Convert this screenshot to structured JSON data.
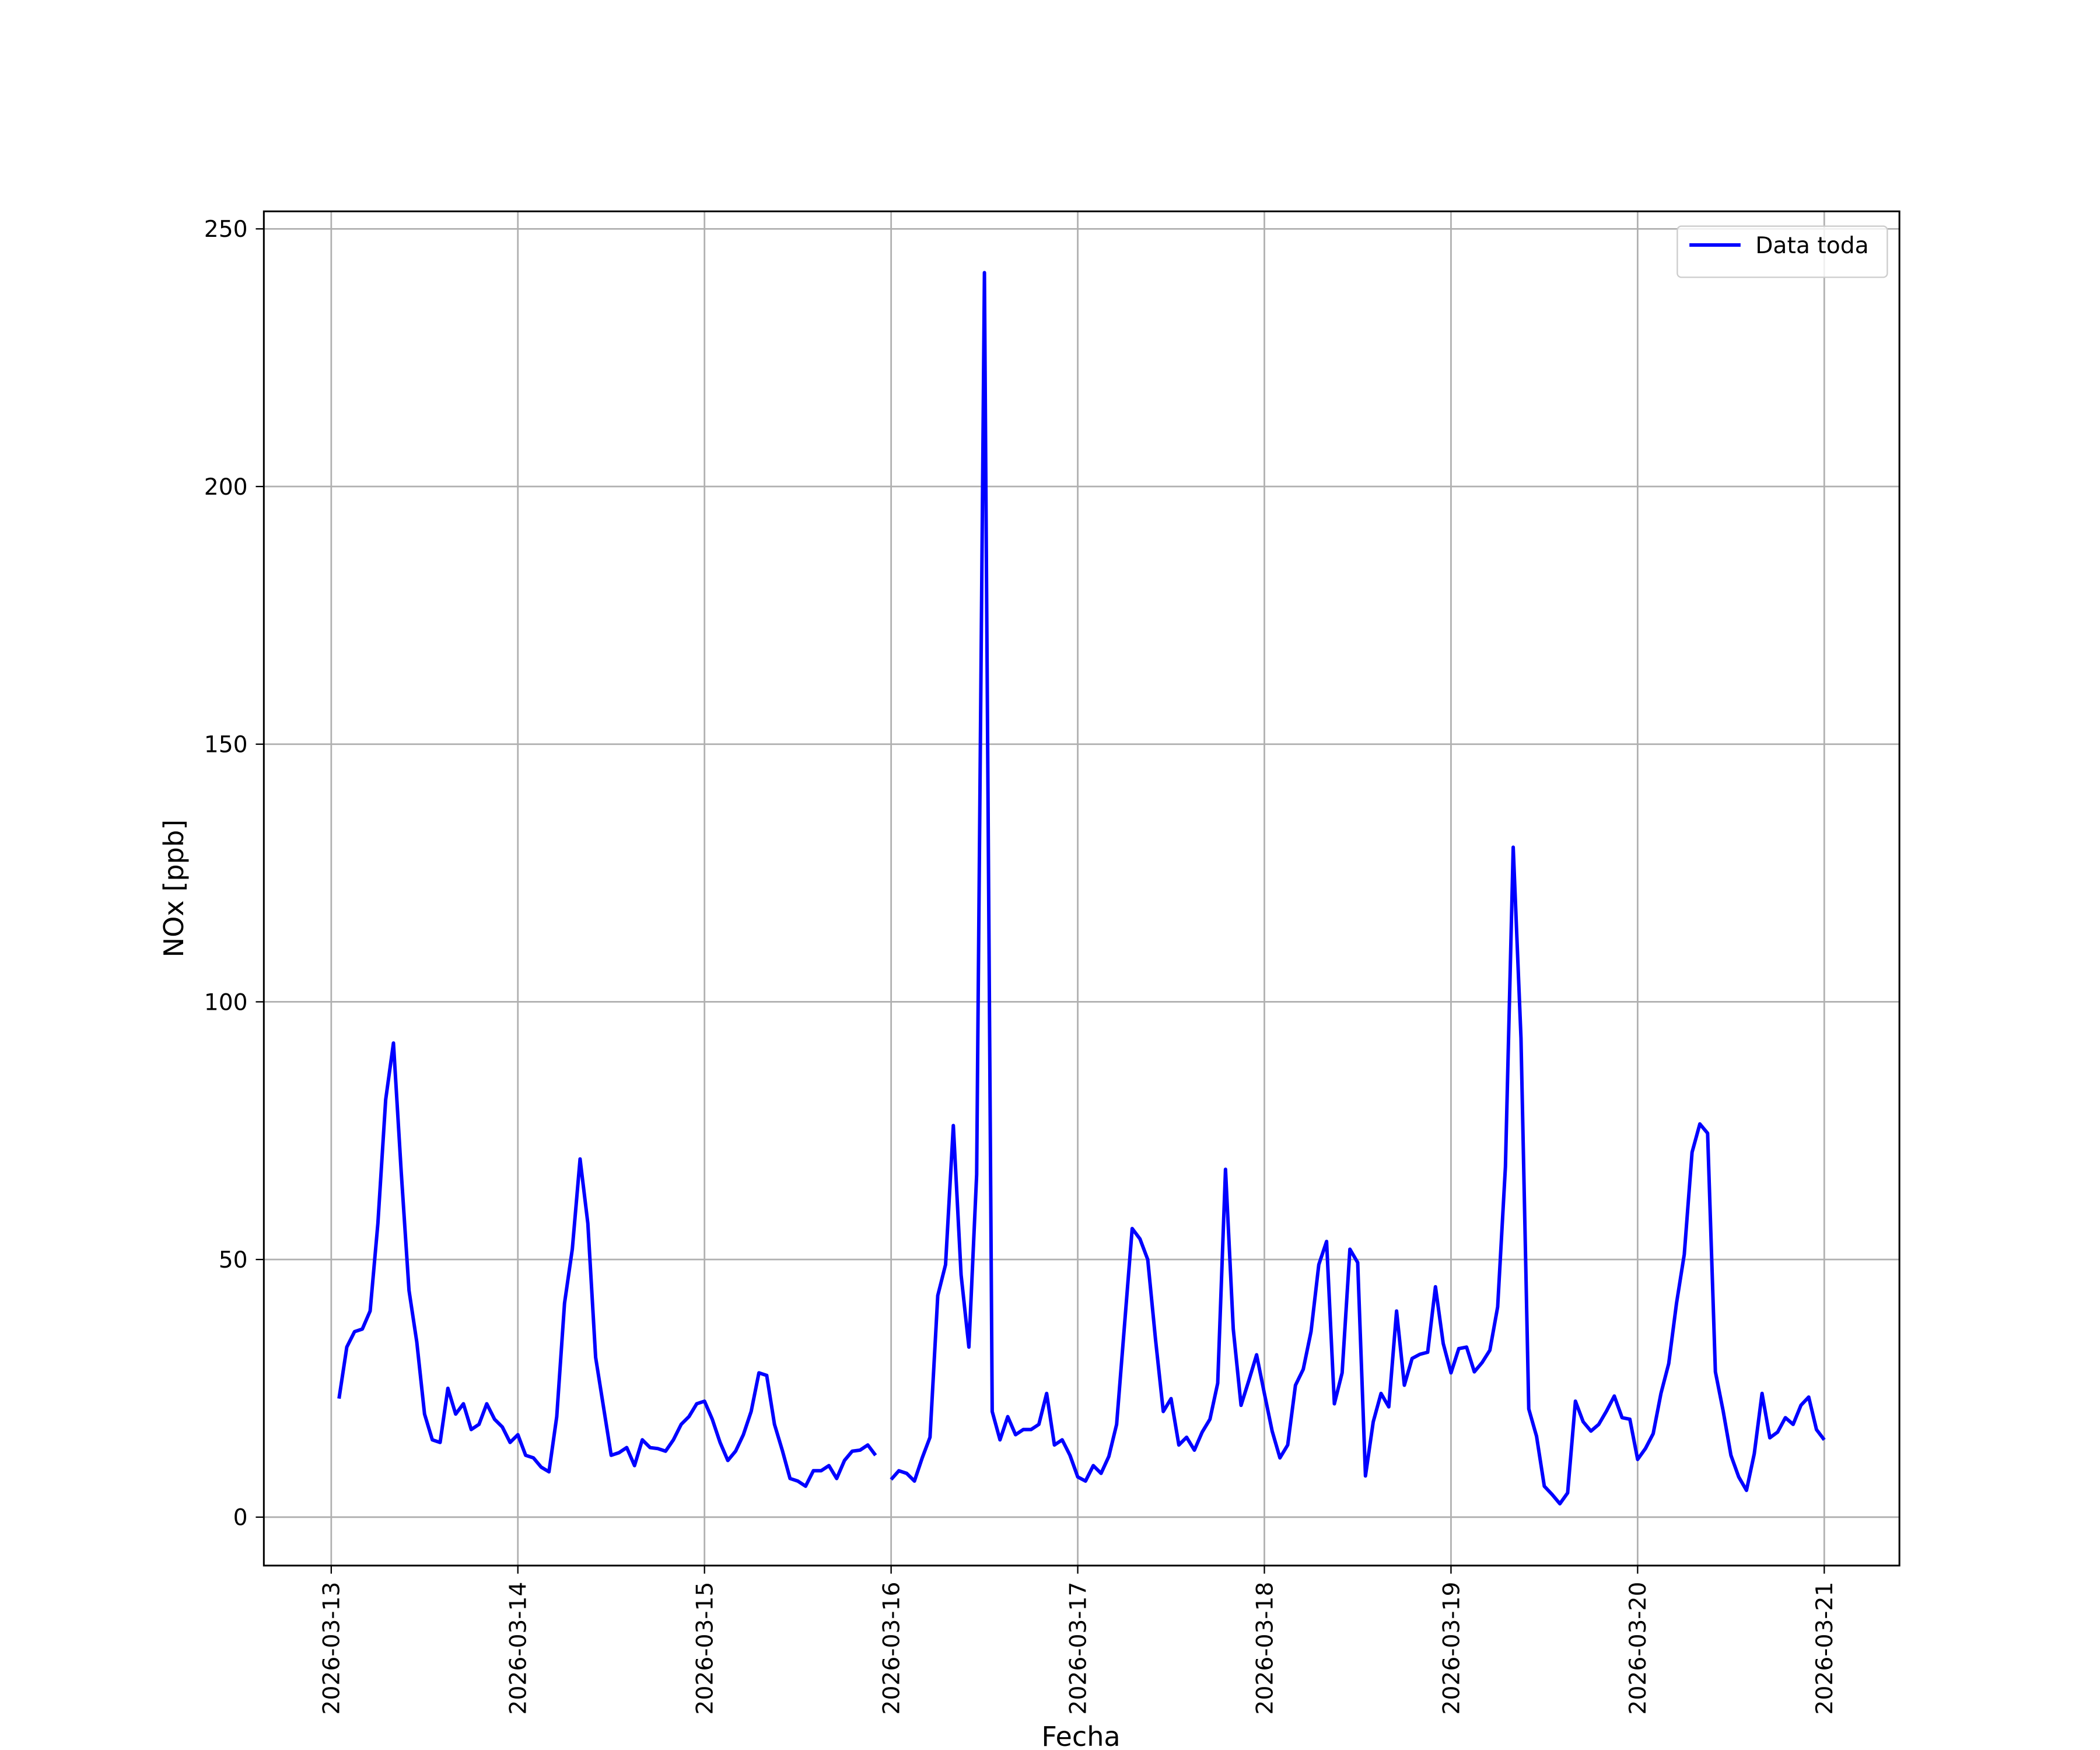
{
  "chart_data": {
    "type": "line",
    "x_label": "Fecha",
    "y_label": "NOx [ppb]",
    "x": [
      "2026-03-13 01:00",
      "2026-03-13 02:00",
      "2026-03-13 03:00",
      "2026-03-13 04:00",
      "2026-03-13 05:00",
      "2026-03-13 06:00",
      "2026-03-13 07:00",
      "2026-03-13 08:00",
      "2026-03-13 09:00",
      "2026-03-13 10:00",
      "2026-03-13 11:00",
      "2026-03-13 12:00",
      "2026-03-13 13:00",
      "2026-03-13 14:00",
      "2026-03-13 15:00",
      "2026-03-13 16:00",
      "2026-03-13 17:00",
      "2026-03-13 18:00",
      "2026-03-13 19:00",
      "2026-03-13 20:00",
      "2026-03-13 21:00",
      "2026-03-13 22:00",
      "2026-03-13 23:00",
      "2026-03-14 00:00",
      "2026-03-14 01:00",
      "2026-03-14 02:00",
      "2026-03-14 03:00",
      "2026-03-14 04:00",
      "2026-03-14 05:00",
      "2026-03-14 06:00",
      "2026-03-14 07:00",
      "2026-03-14 08:00",
      "2026-03-14 09:00",
      "2026-03-14 10:00",
      "2026-03-14 11:00",
      "2026-03-14 12:00",
      "2026-03-14 13:00",
      "2026-03-14 14:00",
      "2026-03-14 15:00",
      "2026-03-14 16:00",
      "2026-03-14 17:00",
      "2026-03-14 18:00",
      "2026-03-14 19:00",
      "2026-03-14 20:00",
      "2026-03-14 21:00",
      "2026-03-14 22:00",
      "2026-03-14 23:00",
      "2026-03-15 00:00",
      "2026-03-15 01:00",
      "2026-03-15 02:00",
      "2026-03-15 03:00",
      "2026-03-15 04:00",
      "2026-03-15 05:00",
      "2026-03-15 06:00",
      "2026-03-15 07:00",
      "2026-03-15 08:00",
      "2026-03-15 09:00",
      "2026-03-15 10:00",
      "2026-03-15 11:00",
      "2026-03-15 12:00",
      "2026-03-15 13:00",
      "2026-03-15 14:00",
      "2026-03-15 15:00",
      "2026-03-15 16:00",
      "2026-03-15 17:00",
      "2026-03-15 18:00",
      "2026-03-15 19:00",
      "2026-03-15 20:00",
      "2026-03-15 21:00",
      "2026-03-15 22:00",
      "2026-03-15 23:00",
      "2026-03-16 00:00",
      "2026-03-16 01:00",
      "2026-03-16 02:00",
      "2026-03-16 03:00",
      "2026-03-16 04:00",
      "2026-03-16 05:00",
      "2026-03-16 06:00",
      "2026-03-16 07:00",
      "2026-03-16 08:00",
      "2026-03-16 09:00",
      "2026-03-16 10:00",
      "2026-03-16 11:00",
      "2026-03-16 12:00",
      "2026-03-16 13:00",
      "2026-03-16 14:00",
      "2026-03-16 15:00",
      "2026-03-16 16:00",
      "2026-03-16 17:00",
      "2026-03-16 18:00",
      "2026-03-16 19:00",
      "2026-03-16 20:00",
      "2026-03-16 21:00",
      "2026-03-16 22:00",
      "2026-03-16 23:00",
      "2026-03-17 00:00",
      "2026-03-17 01:00",
      "2026-03-17 02:00",
      "2026-03-17 03:00",
      "2026-03-17 04:00",
      "2026-03-17 05:00",
      "2026-03-17 06:00",
      "2026-03-17 07:00",
      "2026-03-17 08:00",
      "2026-03-17 09:00",
      "2026-03-17 10:00",
      "2026-03-17 11:00",
      "2026-03-17 12:00",
      "2026-03-17 13:00",
      "2026-03-17 14:00",
      "2026-03-17 15:00",
      "2026-03-17 16:00",
      "2026-03-17 17:00",
      "2026-03-17 18:00",
      "2026-03-17 19:00",
      "2026-03-17 20:00",
      "2026-03-17 21:00",
      "2026-03-17 22:00",
      "2026-03-17 23:00",
      "2026-03-18 00:00",
      "2026-03-18 01:00",
      "2026-03-18 02:00",
      "2026-03-18 03:00",
      "2026-03-18 04:00",
      "2026-03-18 05:00",
      "2026-03-18 06:00",
      "2026-03-18 07:00",
      "2026-03-18 08:00",
      "2026-03-18 09:00",
      "2026-03-18 10:00",
      "2026-03-18 11:00",
      "2026-03-18 12:00",
      "2026-03-18 13:00",
      "2026-03-18 14:00",
      "2026-03-18 15:00",
      "2026-03-18 16:00",
      "2026-03-18 17:00",
      "2026-03-18 18:00",
      "2026-03-18 19:00",
      "2026-03-18 20:00",
      "2026-03-18 21:00",
      "2026-03-18 22:00",
      "2026-03-18 23:00",
      "2026-03-19 00:00",
      "2026-03-19 01:00",
      "2026-03-19 02:00",
      "2026-03-19 03:00",
      "2026-03-19 04:00",
      "2026-03-19 05:00",
      "2026-03-19 06:00",
      "2026-03-19 07:00",
      "2026-03-19 08:00",
      "2026-03-19 09:00",
      "2026-03-19 10:00",
      "2026-03-19 11:00",
      "2026-03-19 12:00",
      "2026-03-19 13:00",
      "2026-03-19 14:00",
      "2026-03-19 15:00",
      "2026-03-19 16:00",
      "2026-03-19 17:00",
      "2026-03-19 18:00",
      "2026-03-19 19:00",
      "2026-03-19 20:00",
      "2026-03-19 21:00",
      "2026-03-19 22:00",
      "2026-03-19 23:00",
      "2026-03-20 00:00",
      "2026-03-20 01:00",
      "2026-03-20 02:00",
      "2026-03-20 03:00",
      "2026-03-20 04:00",
      "2026-03-20 05:00",
      "2026-03-20 06:00",
      "2026-03-20 07:00",
      "2026-03-20 08:00",
      "2026-03-20 09:00",
      "2026-03-20 10:00",
      "2026-03-20 11:00",
      "2026-03-20 12:00",
      "2026-03-20 13:00",
      "2026-03-20 14:00",
      "2026-03-20 15:00",
      "2026-03-20 16:00",
      "2026-03-20 17:00",
      "2026-03-20 18:00",
      "2026-03-20 19:00",
      "2026-03-20 20:00",
      "2026-03-20 21:00",
      "2026-03-20 22:00",
      "2026-03-20 23:00",
      "2026-03-21 00:00"
    ],
    "series": [
      {
        "name": "Data toda",
        "color": "#0000ff",
        "values": [
          23,
          33,
          36,
          36.5,
          40,
          57,
          81,
          92,
          67,
          44,
          34,
          20,
          15,
          14.5,
          25,
          20,
          22,
          17,
          18,
          22,
          19,
          17.5,
          14.5,
          16,
          12,
          11.5,
          9.7,
          8.8,
          19.5,
          41.5,
          52,
          69.5,
          57,
          31,
          21.5,
          12,
          12.5,
          13.5,
          10,
          15,
          13.5,
          13.3,
          12.8,
          15,
          18,
          19.5,
          22,
          22.5,
          19,
          14.5,
          11,
          12.8,
          16,
          20.5,
          28,
          27.5,
          18,
          13,
          7.5,
          7,
          6,
          9,
          9,
          10,
          7.5,
          11,
          12.8,
          13,
          14,
          12,
          null,
          7.3,
          9,
          8.5,
          7,
          11.5,
          15.5,
          43,
          49,
          76,
          47,
          33,
          66.5,
          241.5,
          20.5,
          15,
          19.5,
          16,
          17,
          17,
          18,
          24,
          14,
          15,
          12,
          7.8,
          7,
          10,
          8.5,
          11.8,
          18,
          37,
          56,
          54,
          50,
          34.5,
          20.5,
          23,
          14,
          15.5,
          13,
          16.5,
          19,
          26,
          67.5,
          36.5,
          21.7,
          26.5,
          31.5,
          24,
          16.7,
          11.5,
          14,
          25.6,
          28.7,
          36,
          49,
          53.5,
          22,
          28,
          52,
          49.4,
          8,
          18.5,
          24,
          21.4,
          40,
          25.6,
          30.8,
          31.6,
          32,
          44.7,
          33.7,
          28,
          32.7,
          33,
          28.2,
          30,
          32.4,
          40.8,
          68,
          130,
          93,
          21,
          15.7,
          6,
          4.4,
          2.6,
          4.7,
          22.5,
          18.5,
          16.7,
          18,
          20.6,
          23.5,
          19.3,
          19,
          11.2,
          13.3,
          16.2,
          24,
          29.8,
          41.5,
          51,
          70.8,
          76.3,
          74.5,
          28.2,
          20.6,
          12,
          7.8,
          5.2,
          12.3,
          24,
          15.4,
          16.5,
          19.3,
          18,
          21.7,
          23.3,
          17,
          15
        ]
      }
    ],
    "xlim": [
      "2026-03-12 15:20",
      "2026-03-21 09:40"
    ],
    "xticks": [
      "2026-03-13",
      "2026-03-14",
      "2026-03-15",
      "2026-03-16",
      "2026-03-17",
      "2026-03-18",
      "2026-03-19",
      "2026-03-20",
      "2026-03-21"
    ],
    "ylim": [
      -9.4,
      253.4
    ],
    "yticks": [
      0,
      50,
      100,
      150,
      200,
      250
    ],
    "grid": true,
    "legend": "upper right"
  }
}
